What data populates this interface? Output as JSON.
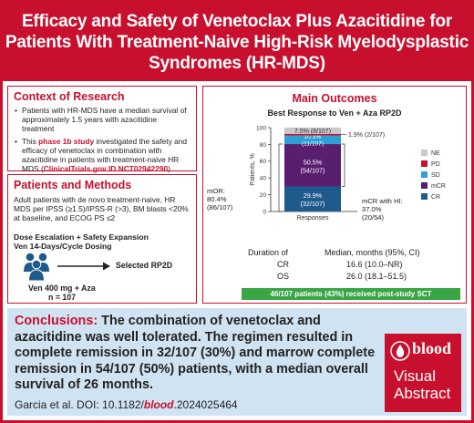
{
  "header": {
    "title_lines": [
      "Efficacy and Safety of Venetoclax Plus Azacitidine for",
      "Patients With Treatment-Naive High-Risk Myelodysplastic",
      "Syndromes (HR-MDS)"
    ]
  },
  "context": {
    "title": "Context of Research",
    "bullet1": "Patients with HR-MDS have a median survival of approximately 1.5 years with azacitidine treatment",
    "bullet2_pre": "This ",
    "bullet2_highlight": "phase 1b study",
    "bullet2_mid": " investigated the safety and efficacy of venetoclax in combination with azacitidine in patients with treatment-naive HR MDS (",
    "bullet2_link": "ClinicalTrials.gov ID NCT02942290",
    "bullet2_post": ")"
  },
  "methods": {
    "title": "Patients and Methods",
    "body": "Adult patients with de novo treatment-naive, HR MDS per IPSS (≥1.5)/IPSS-R (>3), BM blasts <20% at baseline, and ECOG PS ≤2",
    "dose_line1": "Dose Escalation + Safety Expansion",
    "dose_line2": "Ven 14-Days/Cycle Dosing",
    "selected": "Selected RP2D",
    "regimen": "Ven 400 mg + Aza",
    "n": "n = 107"
  },
  "outcomes": {
    "title": "Main Outcomes",
    "mor_label": "mOR:",
    "mor_value": "80.4%",
    "mor_frac": "(86/107)",
    "mcr_hi_line1": "mCR with HI:",
    "mcr_hi_line2": "37.0%",
    "mcr_hi_line3": "(20/54)",
    "duration_label": "Duration of",
    "duration_header": "Median, months (95%, CI)",
    "cr_label": "CR",
    "cr_value": "16.6 (10.0–NR)",
    "os_label": "OS",
    "os_value": "26.0 (18.1–51.5)",
    "sct": "46/107 patients (43%) received post-study SCT"
  },
  "chart_data": {
    "type": "bar",
    "title": "Best Response to Ven + Aza RP2D",
    "ylabel": "Patients, %",
    "xlabel": "Responses",
    "ylim": [
      0,
      100
    ],
    "y_ticks": [
      "0",
      "20",
      "40",
      "60",
      "80",
      "100"
    ],
    "categories": [
      "Responses"
    ],
    "legend_position": "right",
    "series": [
      {
        "name": "CR",
        "values": [
          29.9
        ],
        "label_pct": "29.9%",
        "label_frac": "(32/107)",
        "color": "#1f5a8c"
      },
      {
        "name": "mCR",
        "values": [
          50.5
        ],
        "label_pct": "50.5%",
        "label_frac": "(54/107)",
        "color": "#5a1e6e"
      },
      {
        "name": "SD",
        "values": [
          10.3
        ],
        "label_pct": "10.3%",
        "label_frac": "(11/107)",
        "color": "#2f9fd6"
      },
      {
        "name": "PD",
        "values": [
          1.9
        ],
        "label_pct": "1.9% (2/107)",
        "label_frac": "",
        "color": "#c8102e"
      },
      {
        "name": "NE",
        "values": [
          7.5
        ],
        "label_pct": "7.5% (8/107)",
        "label_frac": "",
        "color": "#c8c8c8"
      }
    ],
    "legend_order": [
      "NE",
      "PD",
      "SD",
      "mCR",
      "CR"
    ]
  },
  "conclusion": {
    "lead": "Conclusions:",
    "text": " The combination of venetoclax and azacitidine was well tolerated. The regimen resulted in complete remission in 32/107 (30%) and marrow complete remission in 54/107 (50%) patients, with a median overall survival of 26 months.",
    "citation_pre": "Garcia et al. DOI: 10.1182/",
    "citation_journal": "blood",
    "citation_post": ".2024025464"
  },
  "logo": {
    "brand": "blood",
    "line1": "Visual",
    "line2": "Abstract"
  },
  "colors": {
    "accent": "#c8102e",
    "conclusion_bg": "#cfe3f2",
    "sct_green": "#3aa545"
  }
}
